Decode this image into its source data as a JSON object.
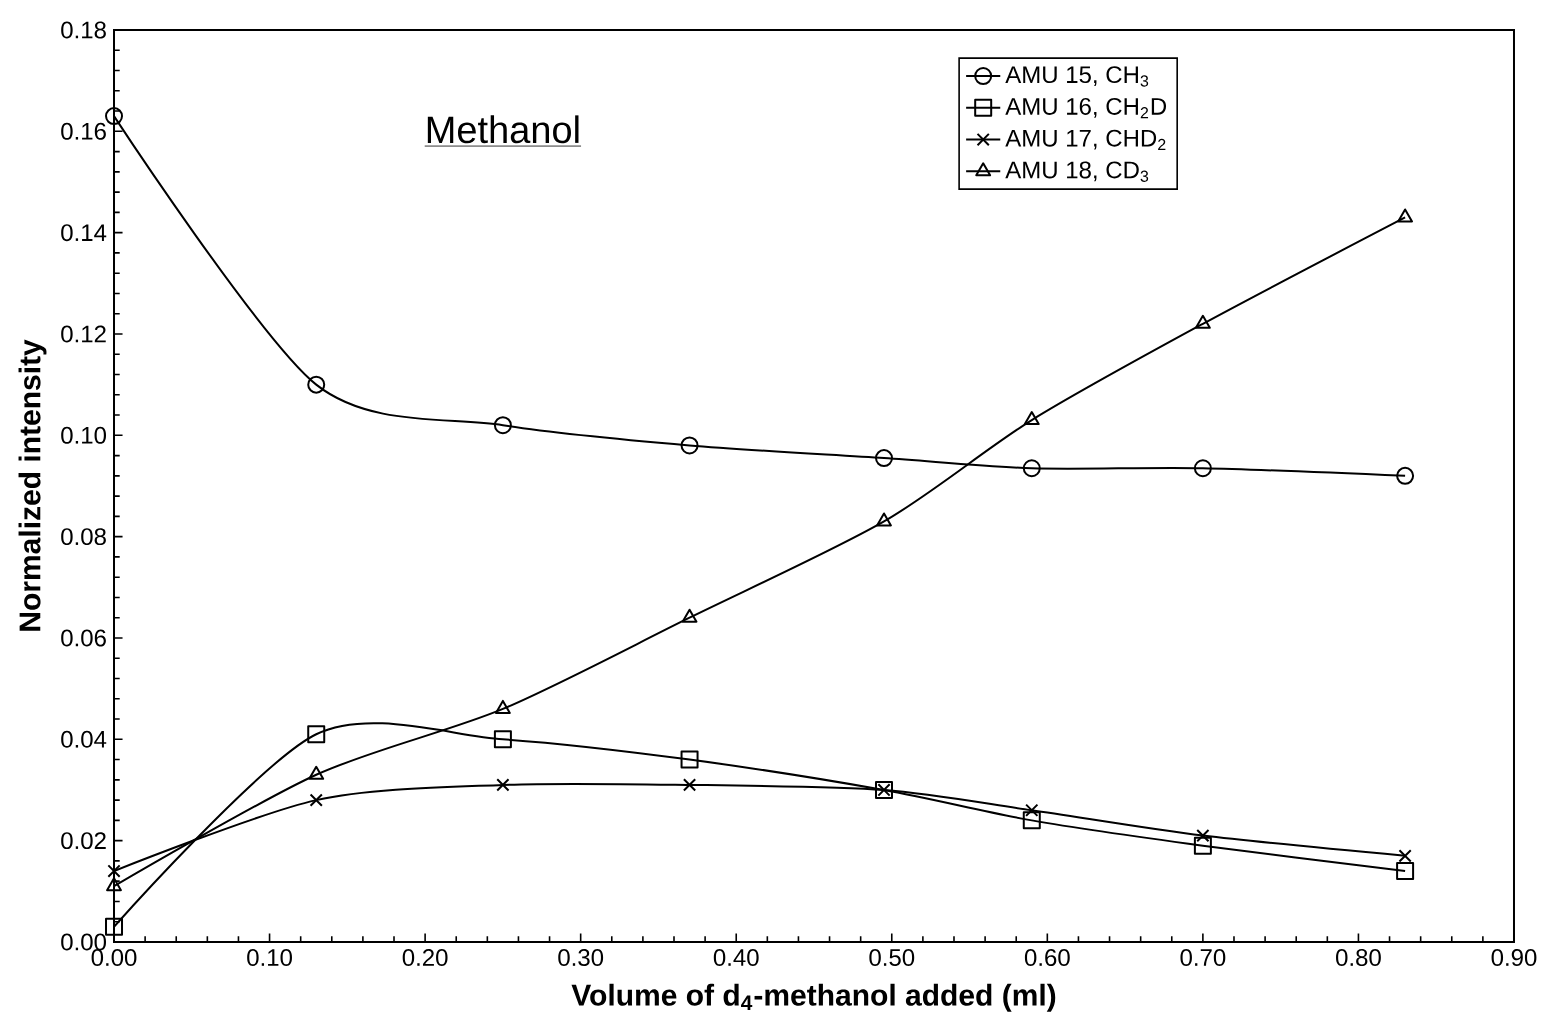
{
  "chart_data": {
    "type": "line",
    "title": "Methanol",
    "xlabel": "Volume of d$_{4}$-methanol added (ml)",
    "ylabel": "Normalized intensity",
    "x": [
      0,
      0.13,
      0.25,
      0.37,
      0.495,
      0.59,
      0.7,
      0.83
    ],
    "series": [
      {
        "name": "AMU 15, CH$_{3}$",
        "color": "#000000",
        "marker": "circle",
        "values": [
          0.163,
          0.11,
          0.102,
          0.098,
          0.0955,
          0.0935,
          0.0935,
          0.092
        ]
      },
      {
        "name": "AMU 16, CH$_{2}$D",
        "color": "#000000",
        "marker": "square",
        "values": [
          0.003,
          0.041,
          0.04,
          0.036,
          0.03,
          0.024,
          0.019,
          0.014
        ]
      },
      {
        "name": "AMU 17, CHD$_{2}$",
        "color": "#000000",
        "marker": "cross",
        "values": [
          0.014,
          0.028,
          0.031,
          0.031,
          0.03,
          0.026,
          0.021,
          0.017
        ]
      },
      {
        "name": "AMU 18, CD$_{3}$",
        "color": "#000000",
        "marker": "triangle",
        "values": [
          0.011,
          0.033,
          0.046,
          0.064,
          0.083,
          0.103,
          0.122,
          0.143
        ]
      }
    ],
    "xlim": [
      0,
      0.9
    ],
    "ylim": [
      0,
      0.18
    ],
    "xticks": [
      {
        "value": 0,
        "label": "0.00"
      },
      {
        "value": 0.1,
        "label": "0.10"
      },
      {
        "value": 0.2,
        "label": "0.20"
      },
      {
        "value": 0.3,
        "label": "0.30"
      },
      {
        "value": 0.4,
        "label": "0.40"
      },
      {
        "value": 0.5,
        "label": "0.50"
      },
      {
        "value": 0.6,
        "label": "0.60"
      },
      {
        "value": 0.7,
        "label": "0.70"
      },
      {
        "value": 0.8,
        "label": "0.80"
      },
      {
        "value": 0.9,
        "label": "0.90"
      }
    ],
    "yticks": [
      {
        "value": 0,
        "label": "0.00"
      },
      {
        "value": 0.02,
        "label": "0.02"
      },
      {
        "value": 0.04,
        "label": "0.04"
      },
      {
        "value": 0.06,
        "label": "0.06"
      },
      {
        "value": 0.08,
        "label": "0.08"
      },
      {
        "value": 0.1,
        "label": "0.10"
      },
      {
        "value": 0.12,
        "label": "0.12"
      },
      {
        "value": 0.14,
        "label": "0.14"
      },
      {
        "value": 0.16,
        "label": "0.16"
      },
      {
        "value": 0.18,
        "label": "0.18"
      }
    ],
    "grid": false,
    "legend": "top right",
    "line_style": "solid"
  }
}
